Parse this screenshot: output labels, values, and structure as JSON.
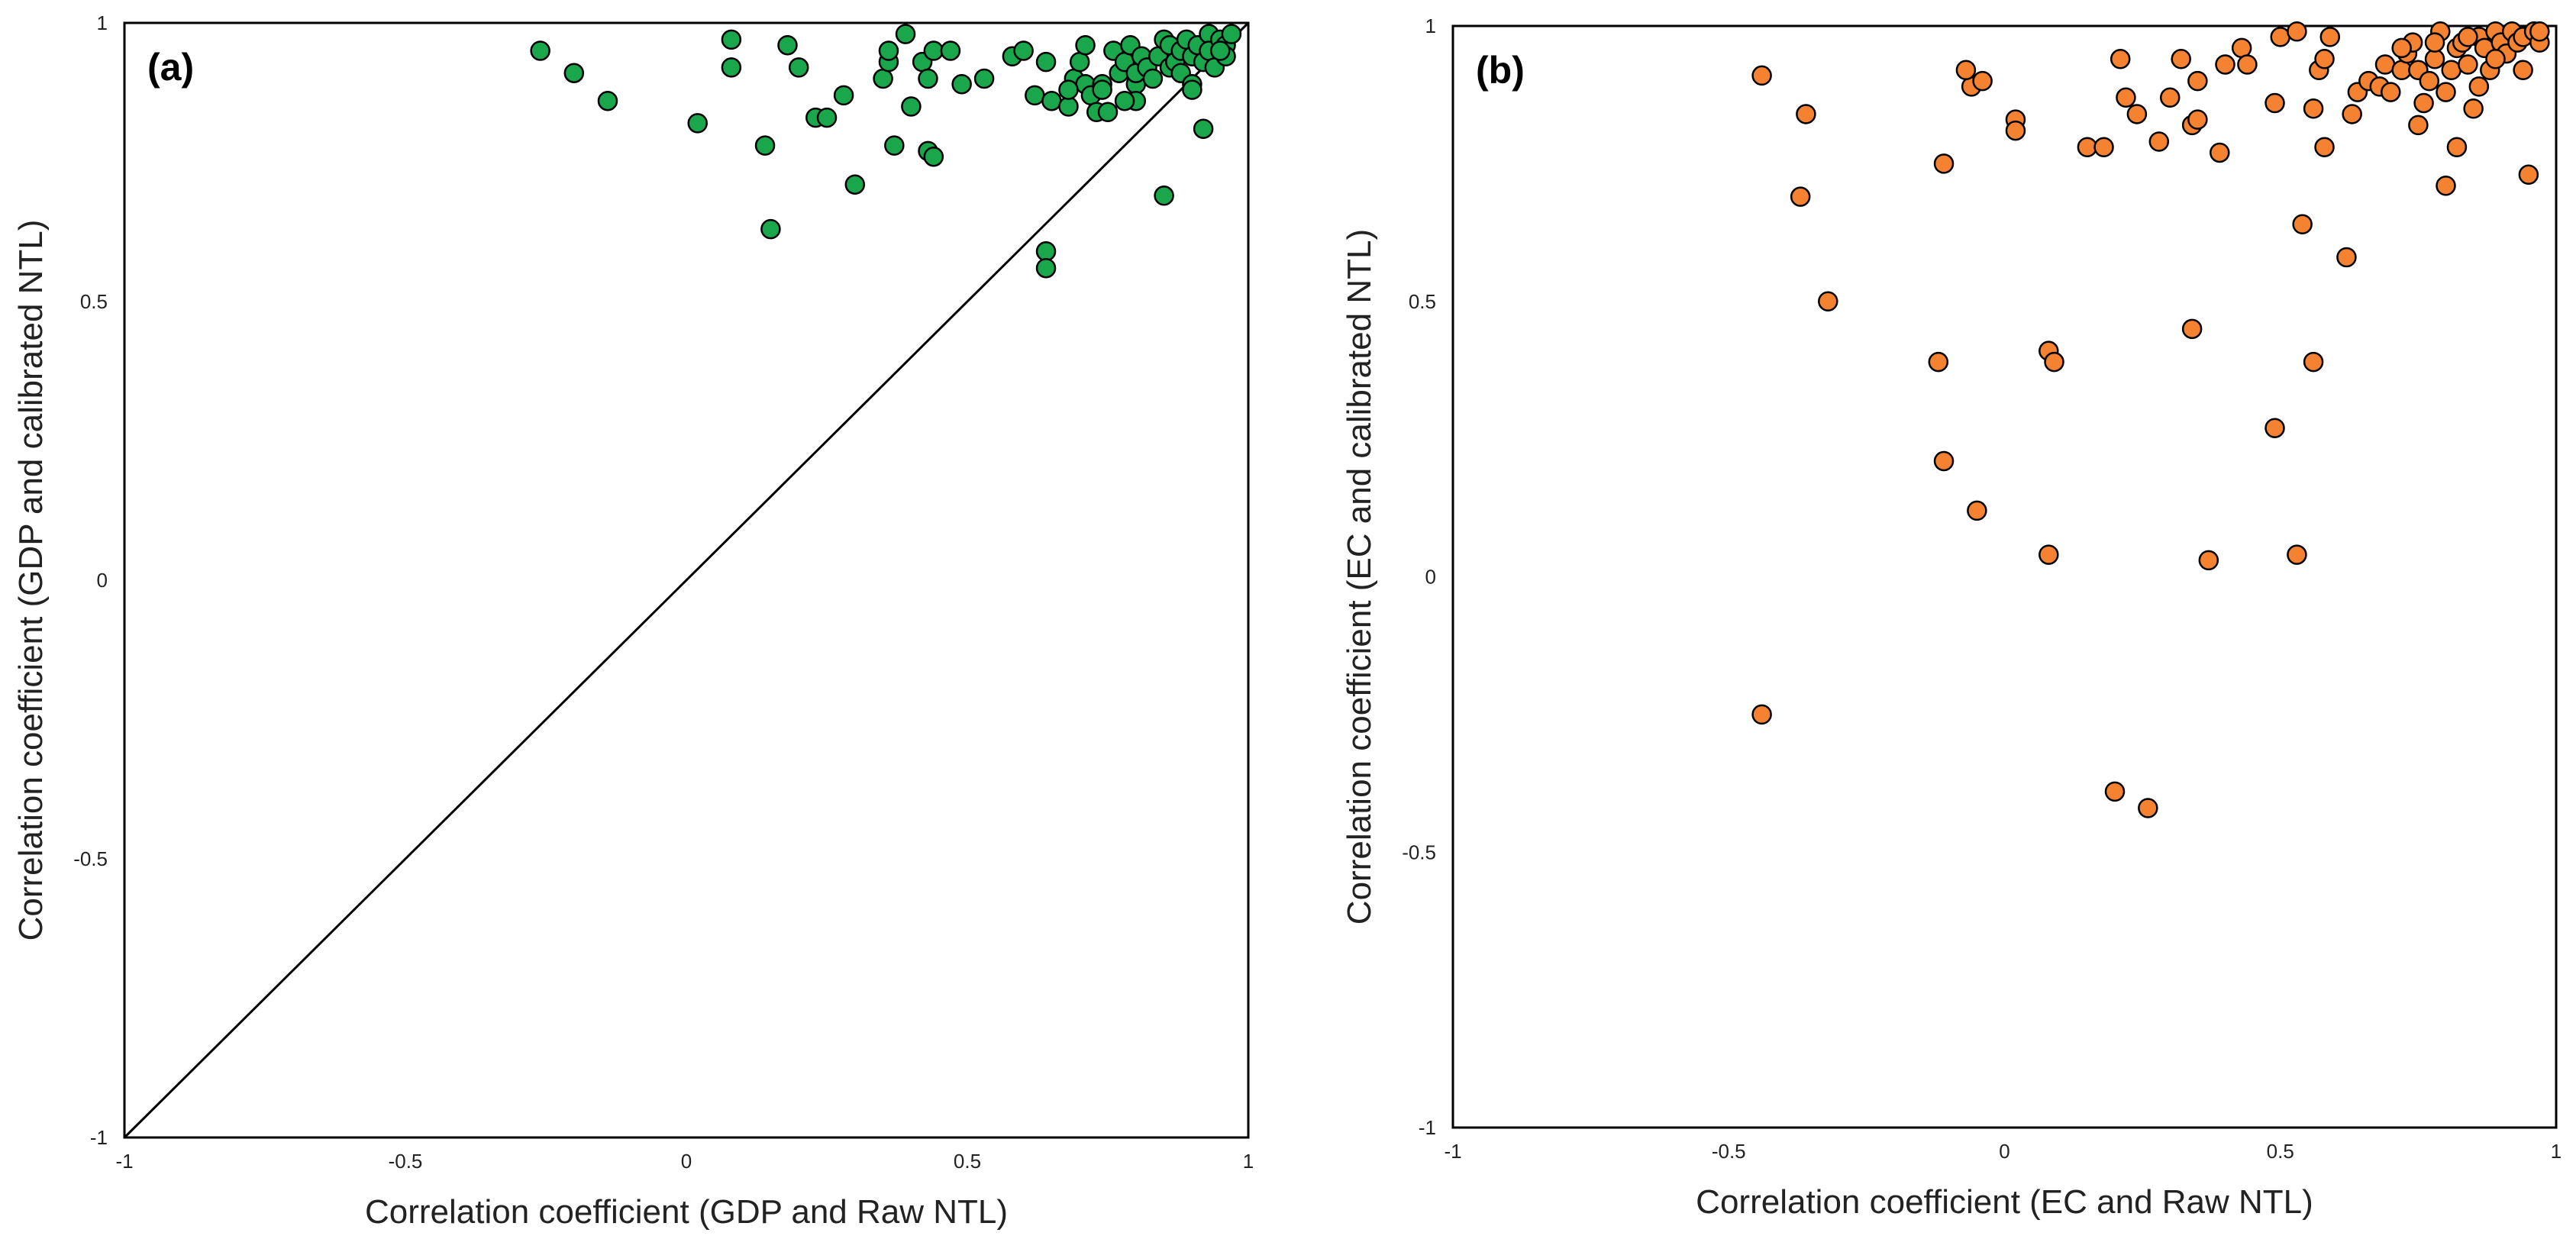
{
  "chart_data": [
    {
      "type": "scatter",
      "panel_label": "(a)",
      "xlabel": "Correlation coefficient (GDP and Raw NTL)",
      "ylabel": "Correlation coefficient  (GDP and calibrated NTL)",
      "xlim": [
        -1,
        1
      ],
      "ylim": [
        -1,
        1
      ],
      "xticks": [
        -1,
        -0.5,
        0,
        0.5,
        1
      ],
      "yticks": [
        -1,
        -0.5,
        0,
        0.5,
        1
      ],
      "xtick_labels": [
        "-1",
        "-0.5",
        "0",
        "0.5",
        "1"
      ],
      "ytick_labels": [
        "-1",
        "-0.5",
        "0",
        "0.5",
        "1"
      ],
      "reference_line": "y = x",
      "marker_color": "#1aa64a",
      "points": [
        [
          -0.26,
          0.95
        ],
        [
          -0.2,
          0.91
        ],
        [
          -0.14,
          0.86
        ],
        [
          0.02,
          0.82
        ],
        [
          0.08,
          0.97
        ],
        [
          0.08,
          0.92
        ],
        [
          0.18,
          0.96
        ],
        [
          0.2,
          0.92
        ],
        [
          0.14,
          0.78
        ],
        [
          0.15,
          0.63
        ],
        [
          0.23,
          0.83
        ],
        [
          0.25,
          0.83
        ],
        [
          0.28,
          0.87
        ],
        [
          0.3,
          0.71
        ],
        [
          0.35,
          0.9
        ],
        [
          0.36,
          0.93
        ],
        [
          0.36,
          0.95
        ],
        [
          0.37,
          0.78
        ],
        [
          0.39,
          0.98
        ],
        [
          0.4,
          0.85
        ],
        [
          0.42,
          0.93
        ],
        [
          0.43,
          0.9
        ],
        [
          0.44,
          0.95
        ],
        [
          0.43,
          0.77
        ],
        [
          0.44,
          0.76
        ],
        [
          0.47,
          0.95
        ],
        [
          0.49,
          0.89
        ],
        [
          0.53,
          0.9
        ],
        [
          0.58,
          0.94
        ],
        [
          0.6,
          0.95
        ],
        [
          0.62,
          0.87
        ],
        [
          0.64,
          0.93
        ],
        [
          0.65,
          0.86
        ],
        [
          0.68,
          0.85
        ],
        [
          0.69,
          0.9
        ],
        [
          0.7,
          0.93
        ],
        [
          0.71,
          0.96
        ],
        [
          0.71,
          0.89
        ],
        [
          0.72,
          0.87
        ],
        [
          0.73,
          0.84
        ],
        [
          0.74,
          0.89
        ],
        [
          0.75,
          0.84
        ],
        [
          0.76,
          0.95
        ],
        [
          0.77,
          0.91
        ],
        [
          0.78,
          0.93
        ],
        [
          0.79,
          0.96
        ],
        [
          0.8,
          0.89
        ],
        [
          0.8,
          0.91
        ],
        [
          0.8,
          0.86
        ],
        [
          0.81,
          0.94
        ],
        [
          0.82,
          0.92
        ],
        [
          0.83,
          0.9
        ],
        [
          0.84,
          0.94
        ],
        [
          0.85,
          0.97
        ],
        [
          0.86,
          0.96
        ],
        [
          0.86,
          0.92
        ],
        [
          0.87,
          0.93
        ],
        [
          0.88,
          0.95
        ],
        [
          0.88,
          0.91
        ],
        [
          0.89,
          0.97
        ],
        [
          0.9,
          0.94
        ],
        [
          0.9,
          0.89
        ],
        [
          0.91,
          0.96
        ],
        [
          0.92,
          0.93
        ],
        [
          0.93,
          0.98
        ],
        [
          0.93,
          0.95
        ],
        [
          0.94,
          0.92
        ],
        [
          0.95,
          0.97
        ],
        [
          0.96,
          0.96
        ],
        [
          0.97,
          0.98
        ],
        [
          0.96,
          0.94
        ],
        [
          0.92,
          0.81
        ],
        [
          0.85,
          0.69
        ],
        [
          0.64,
          0.59
        ],
        [
          0.64,
          0.56
        ],
        [
          0.9,
          0.88
        ],
        [
          0.78,
          0.86
        ],
        [
          0.74,
          0.88
        ],
        [
          0.68,
          0.88
        ],
        [
          0.95,
          0.95
        ]
      ]
    },
    {
      "type": "scatter",
      "panel_label": "(b)",
      "xlabel": "Correlation coefficient (EC and Raw NTL)",
      "ylabel": "Correlation coefficient (EC and calibrated NTL)",
      "xlim": [
        -1,
        1
      ],
      "ylim": [
        -1,
        1
      ],
      "xticks": [
        -1,
        -0.5,
        0,
        0.5,
        1
      ],
      "yticks": [
        -1,
        -0.5,
        0,
        0.5,
        1
      ],
      "xtick_labels": [
        "-1",
        "-0.5",
        "0",
        "0.5",
        "1"
      ],
      "ytick_labels": [
        "-1",
        "-0.5",
        "0",
        "0.5",
        "1"
      ],
      "marker_color": "#f58231",
      "points": [
        [
          -0.44,
          0.91
        ],
        [
          -0.36,
          0.84
        ],
        [
          -0.37,
          0.69
        ],
        [
          -0.32,
          0.5
        ],
        [
          -0.44,
          -0.25
        ],
        [
          -0.12,
          0.39
        ],
        [
          -0.11,
          0.21
        ],
        [
          -0.11,
          0.75
        ],
        [
          -0.06,
          0.89
        ],
        [
          -0.07,
          0.92
        ],
        [
          -0.04,
          0.9
        ],
        [
          -0.05,
          0.12
        ],
        [
          0.02,
          0.83
        ],
        [
          0.02,
          0.81
        ],
        [
          0.08,
          0.41
        ],
        [
          0.09,
          0.39
        ],
        [
          0.08,
          0.04
        ],
        [
          0.15,
          0.78
        ],
        [
          0.18,
          0.78
        ],
        [
          0.2,
          -0.39
        ],
        [
          0.26,
          -0.42
        ],
        [
          0.21,
          0.94
        ],
        [
          0.22,
          0.87
        ],
        [
          0.24,
          0.84
        ],
        [
          0.28,
          0.79
        ],
        [
          0.3,
          0.87
        ],
        [
          0.32,
          0.94
        ],
        [
          0.34,
          0.82
        ],
        [
          0.35,
          0.9
        ],
        [
          0.35,
          0.83
        ],
        [
          0.34,
          0.45
        ],
        [
          0.37,
          0.03
        ],
        [
          0.39,
          0.77
        ],
        [
          0.4,
          0.93
        ],
        [
          0.43,
          0.96
        ],
        [
          0.44,
          0.93
        ],
        [
          0.49,
          0.86
        ],
        [
          0.5,
          0.98
        ],
        [
          0.49,
          0.27
        ],
        [
          0.53,
          0.99
        ],
        [
          0.54,
          0.64
        ],
        [
          0.56,
          0.85
        ],
        [
          0.56,
          0.39
        ],
        [
          0.53,
          0.04
        ],
        [
          0.57,
          0.92
        ],
        [
          0.58,
          0.94
        ],
        [
          0.59,
          0.98
        ],
        [
          0.58,
          0.78
        ],
        [
          0.62,
          0.58
        ],
        [
          0.63,
          0.84
        ],
        [
          0.64,
          0.88
        ],
        [
          0.66,
          0.9
        ],
        [
          0.68,
          0.89
        ],
        [
          0.69,
          0.93
        ],
        [
          0.7,
          0.88
        ],
        [
          0.72,
          0.92
        ],
        [
          0.73,
          0.95
        ],
        [
          0.74,
          0.97
        ],
        [
          0.75,
          0.82
        ],
        [
          0.75,
          0.92
        ],
        [
          0.76,
          0.86
        ],
        [
          0.77,
          0.9
        ],
        [
          0.78,
          0.94
        ],
        [
          0.79,
          0.99
        ],
        [
          0.8,
          0.71
        ],
        [
          0.8,
          0.88
        ],
        [
          0.81,
          0.92
        ],
        [
          0.82,
          0.96
        ],
        [
          0.82,
          0.78
        ],
        [
          0.83,
          0.97
        ],
        [
          0.84,
          0.93
        ],
        [
          0.85,
          0.85
        ],
        [
          0.86,
          0.98
        ],
        [
          0.86,
          0.89
        ],
        [
          0.87,
          0.96
        ],
        [
          0.88,
          0.92
        ],
        [
          0.89,
          0.99
        ],
        [
          0.9,
          0.97
        ],
        [
          0.91,
          0.95
        ],
        [
          0.92,
          0.99
        ],
        [
          0.93,
          0.97
        ],
        [
          0.94,
          0.98
        ],
        [
          0.94,
          0.92
        ],
        [
          0.95,
          0.73
        ],
        [
          0.96,
          0.99
        ],
        [
          0.97,
          0.97
        ],
        [
          0.97,
          0.99
        ],
        [
          0.84,
          0.98
        ],
        [
          0.72,
          0.96
        ],
        [
          0.78,
          0.97
        ],
        [
          0.89,
          0.94
        ]
      ]
    }
  ]
}
